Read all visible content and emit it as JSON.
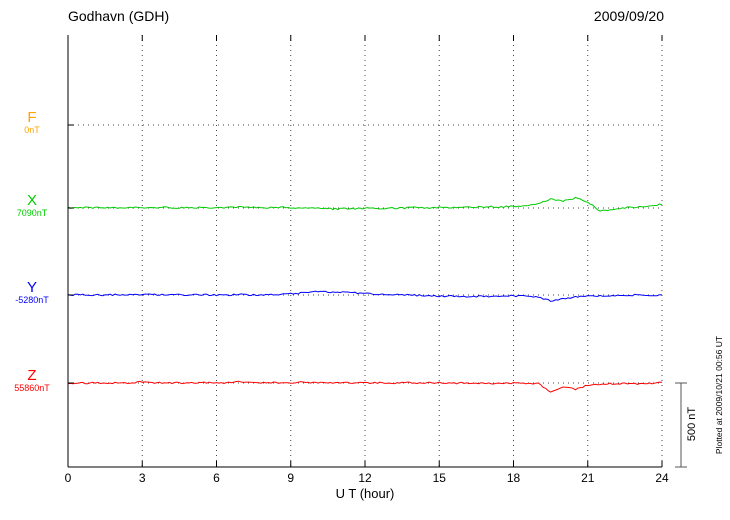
{
  "header": {
    "title": "Godhavn (GDH)",
    "date": "2009/09/20"
  },
  "axis": {
    "xlabel": "U T (hour)",
    "ticks": [
      0,
      3,
      6,
      9,
      12,
      15,
      18,
      21,
      24
    ],
    "xmin": 0,
    "xmax": 24
  },
  "scalebar": {
    "label": "500 nT",
    "nT": 500
  },
  "footer": {
    "plotted_at": "Plotted at 2009/10/21 00:56 UT"
  },
  "chart_data": {
    "type": "line",
    "title": "Godhavn (GDH) magnetogram",
    "date": "2009/09/20",
    "xlabel": "U T (hour)",
    "x_ticks": [
      0,
      3,
      6,
      9,
      12,
      15,
      18,
      21,
      24
    ],
    "scale_bar_nT": 500,
    "units": "nT offset from each component baseline",
    "x": [
      0,
      0.5,
      1,
      1.5,
      2,
      2.5,
      3,
      3.5,
      4,
      4.5,
      5,
      5.5,
      6,
      6.5,
      7,
      7.5,
      8,
      8.5,
      9,
      9.5,
      10,
      10.5,
      11,
      11.5,
      12,
      12.5,
      13,
      13.5,
      14,
      14.5,
      15,
      15.5,
      16,
      16.5,
      17,
      17.5,
      18,
      18.5,
      19,
      19.5,
      20,
      20.5,
      21,
      21.5,
      22,
      22.5,
      23,
      23.5,
      24
    ],
    "series": [
      {
        "name": "F",
        "baseline_label": "0nT",
        "color": "#ffa500",
        "drawn": false,
        "values": [
          0,
          0,
          0,
          0,
          0,
          0,
          0,
          0,
          0,
          0,
          0,
          0,
          0,
          0,
          0,
          0,
          0,
          0,
          0,
          0,
          0,
          0,
          0,
          0,
          0,
          0,
          0,
          0,
          0,
          0,
          0,
          0,
          0,
          0,
          0,
          0,
          0,
          0,
          0,
          0,
          0,
          0,
          0,
          0,
          0,
          0,
          0,
          0,
          0
        ]
      },
      {
        "name": "X",
        "baseline_label": "7090nT",
        "color": "#00cc00",
        "drawn": true,
        "values": [
          2,
          2,
          3,
          2,
          2,
          3,
          4,
          3,
          3,
          2,
          3,
          2,
          3,
          4,
          6,
          3,
          2,
          3,
          2,
          0,
          -2,
          -4,
          -5,
          -3,
          -2,
          -4,
          -2,
          0,
          2,
          0,
          2,
          4,
          3,
          5,
          8,
          6,
          10,
          14,
          25,
          55,
          40,
          60,
          35,
          -18,
          -8,
          2,
          6,
          10,
          22
        ]
      },
      {
        "name": "Y",
        "baseline_label": "-5280nT",
        "color": "#0000ff",
        "drawn": true,
        "values": [
          1,
          0,
          1,
          0,
          1,
          0,
          1,
          2,
          1,
          0,
          1,
          1,
          0,
          1,
          2,
          1,
          2,
          3,
          6,
          14,
          22,
          18,
          16,
          14,
          10,
          6,
          2,
          0,
          -2,
          -4,
          -6,
          -6,
          -8,
          -8,
          -8,
          -6,
          -6,
          -8,
          -12,
          -35,
          -22,
          -12,
          -6,
          -4,
          -2,
          -2,
          0,
          0,
          0
        ]
      },
      {
        "name": "Z",
        "baseline_label": "55860nT",
        "color": "#ff0000",
        "drawn": true,
        "values": [
          0,
          1,
          0,
          1,
          1,
          2,
          6,
          2,
          1,
          1,
          1,
          2,
          1,
          2,
          8,
          2,
          1,
          2,
          3,
          5,
          2,
          1,
          2,
          0,
          -1,
          1,
          0,
          2,
          1,
          0,
          2,
          0,
          -1,
          0,
          -1,
          -2,
          -1,
          -2,
          -4,
          -55,
          -25,
          -38,
          -12,
          -7,
          -5,
          -4,
          -4,
          -3,
          3
        ]
      }
    ]
  }
}
